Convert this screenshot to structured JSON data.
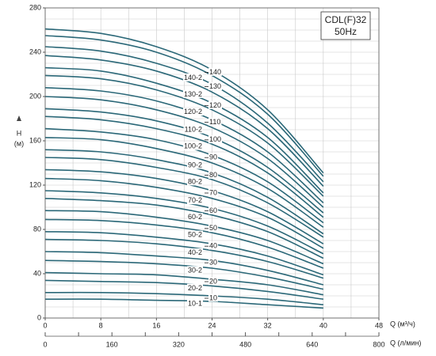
{
  "chart_data": {
    "type": "line",
    "title": [
      "CDL(F)32",
      "50Hz"
    ],
    "y_label": [
      "H",
      "(м)"
    ],
    "x_label": "Q (м³/ч)",
    "x2_label": "Q (л/мин)",
    "color": "#2b6878",
    "xlim": [
      0,
      48
    ],
    "xticks": [
      0,
      8,
      16,
      24,
      32,
      40,
      48
    ],
    "xgrid": [
      0,
      4,
      8,
      12,
      16,
      20,
      24,
      28,
      32,
      36,
      40,
      44,
      48
    ],
    "ylim": [
      0,
      280
    ],
    "yticks": [
      0,
      40,
      80,
      120,
      160,
      200,
      240,
      280
    ],
    "ygrid": [
      0,
      10,
      20,
      30,
      40,
      50,
      60,
      70,
      80,
      90,
      100,
      110,
      120,
      130,
      140,
      150,
      160,
      170,
      180,
      190,
      200,
      210,
      220,
      230,
      240,
      250,
      260,
      270,
      280
    ],
    "x2lim": [
      0,
      800
    ],
    "x2ticks": [
      0,
      160,
      320,
      480,
      640,
      800
    ],
    "x2minor": [
      80,
      240,
      400,
      560,
      720
    ],
    "x": [
      0,
      8,
      16,
      24,
      32,
      40
    ],
    "series": [
      {
        "name": "10-1",
        "values": [
          17,
          17,
          16,
          15,
          12,
          9
        ]
      },
      {
        "name": "10",
        "values": [
          23,
          23,
          22,
          20,
          17,
          12
        ]
      },
      {
        "name": "20-2",
        "values": [
          34,
          33,
          32,
          29,
          24,
          17
        ]
      },
      {
        "name": "20",
        "values": [
          41,
          40,
          39,
          35,
          30,
          21
        ]
      },
      {
        "name": "30-2",
        "values": [
          52,
          51,
          49,
          45,
          37,
          26
        ]
      },
      {
        "name": "30",
        "values": [
          60,
          59,
          56,
          52,
          43,
          30
        ]
      },
      {
        "name": "40-2",
        "values": [
          71,
          70,
          67,
          61,
          51,
          36
        ]
      },
      {
        "name": "40",
        "values": [
          78,
          77,
          73,
          67,
          56,
          39
        ]
      },
      {
        "name": "50-2",
        "values": [
          89,
          88,
          84,
          77,
          64,
          45
        ]
      },
      {
        "name": "50",
        "values": [
          97,
          96,
          91,
          83,
          70,
          49
        ]
      },
      {
        "name": "60-2",
        "values": [
          108,
          106,
          102,
          93,
          78,
          54
        ]
      },
      {
        "name": "60",
        "values": [
          115,
          113,
          108,
          99,
          83,
          58
        ]
      },
      {
        "name": "70-2",
        "values": [
          126,
          124,
          118,
          108,
          91,
          63
        ]
      },
      {
        "name": "70",
        "values": [
          134,
          132,
          126,
          115,
          96,
          67
        ]
      },
      {
        "name": "80-2",
        "values": [
          145,
          143,
          136,
          125,
          104,
          73
        ]
      },
      {
        "name": "80",
        "values": [
          152,
          150,
          143,
          131,
          109,
          76
        ]
      },
      {
        "name": "90-2",
        "values": [
          163,
          161,
          153,
          140,
          117,
          82
        ]
      },
      {
        "name": "90",
        "values": [
          171,
          168,
          161,
          147,
          123,
          86
        ]
      },
      {
        "name": "100-2",
        "values": [
          182,
          179,
          171,
          157,
          131,
          91
        ]
      },
      {
        "name": "100",
        "values": [
          189,
          186,
          178,
          163,
          136,
          95
        ]
      },
      {
        "name": "110-2",
        "values": [
          200,
          197,
          188,
          172,
          144,
          100
        ]
      },
      {
        "name": "110",
        "values": [
          208,
          205,
          196,
          179,
          150,
          104
        ]
      },
      {
        "name": "120-2",
        "values": [
          219,
          216,
          206,
          188,
          158,
          110
        ]
      },
      {
        "name": "120",
        "values": [
          226,
          223,
          212,
          194,
          163,
          113
        ]
      },
      {
        "name": "130-2",
        "values": [
          237,
          233,
          223,
          204,
          171,
          119
        ]
      },
      {
        "name": "130",
        "values": [
          245,
          241,
          230,
          211,
          176,
          123
        ]
      },
      {
        "name": "140-2",
        "values": [
          255,
          251,
          240,
          219,
          184,
          128
        ]
      },
      {
        "name": "140",
        "values": [
          261,
          257,
          245,
          224,
          188,
          131
        ]
      }
    ]
  }
}
